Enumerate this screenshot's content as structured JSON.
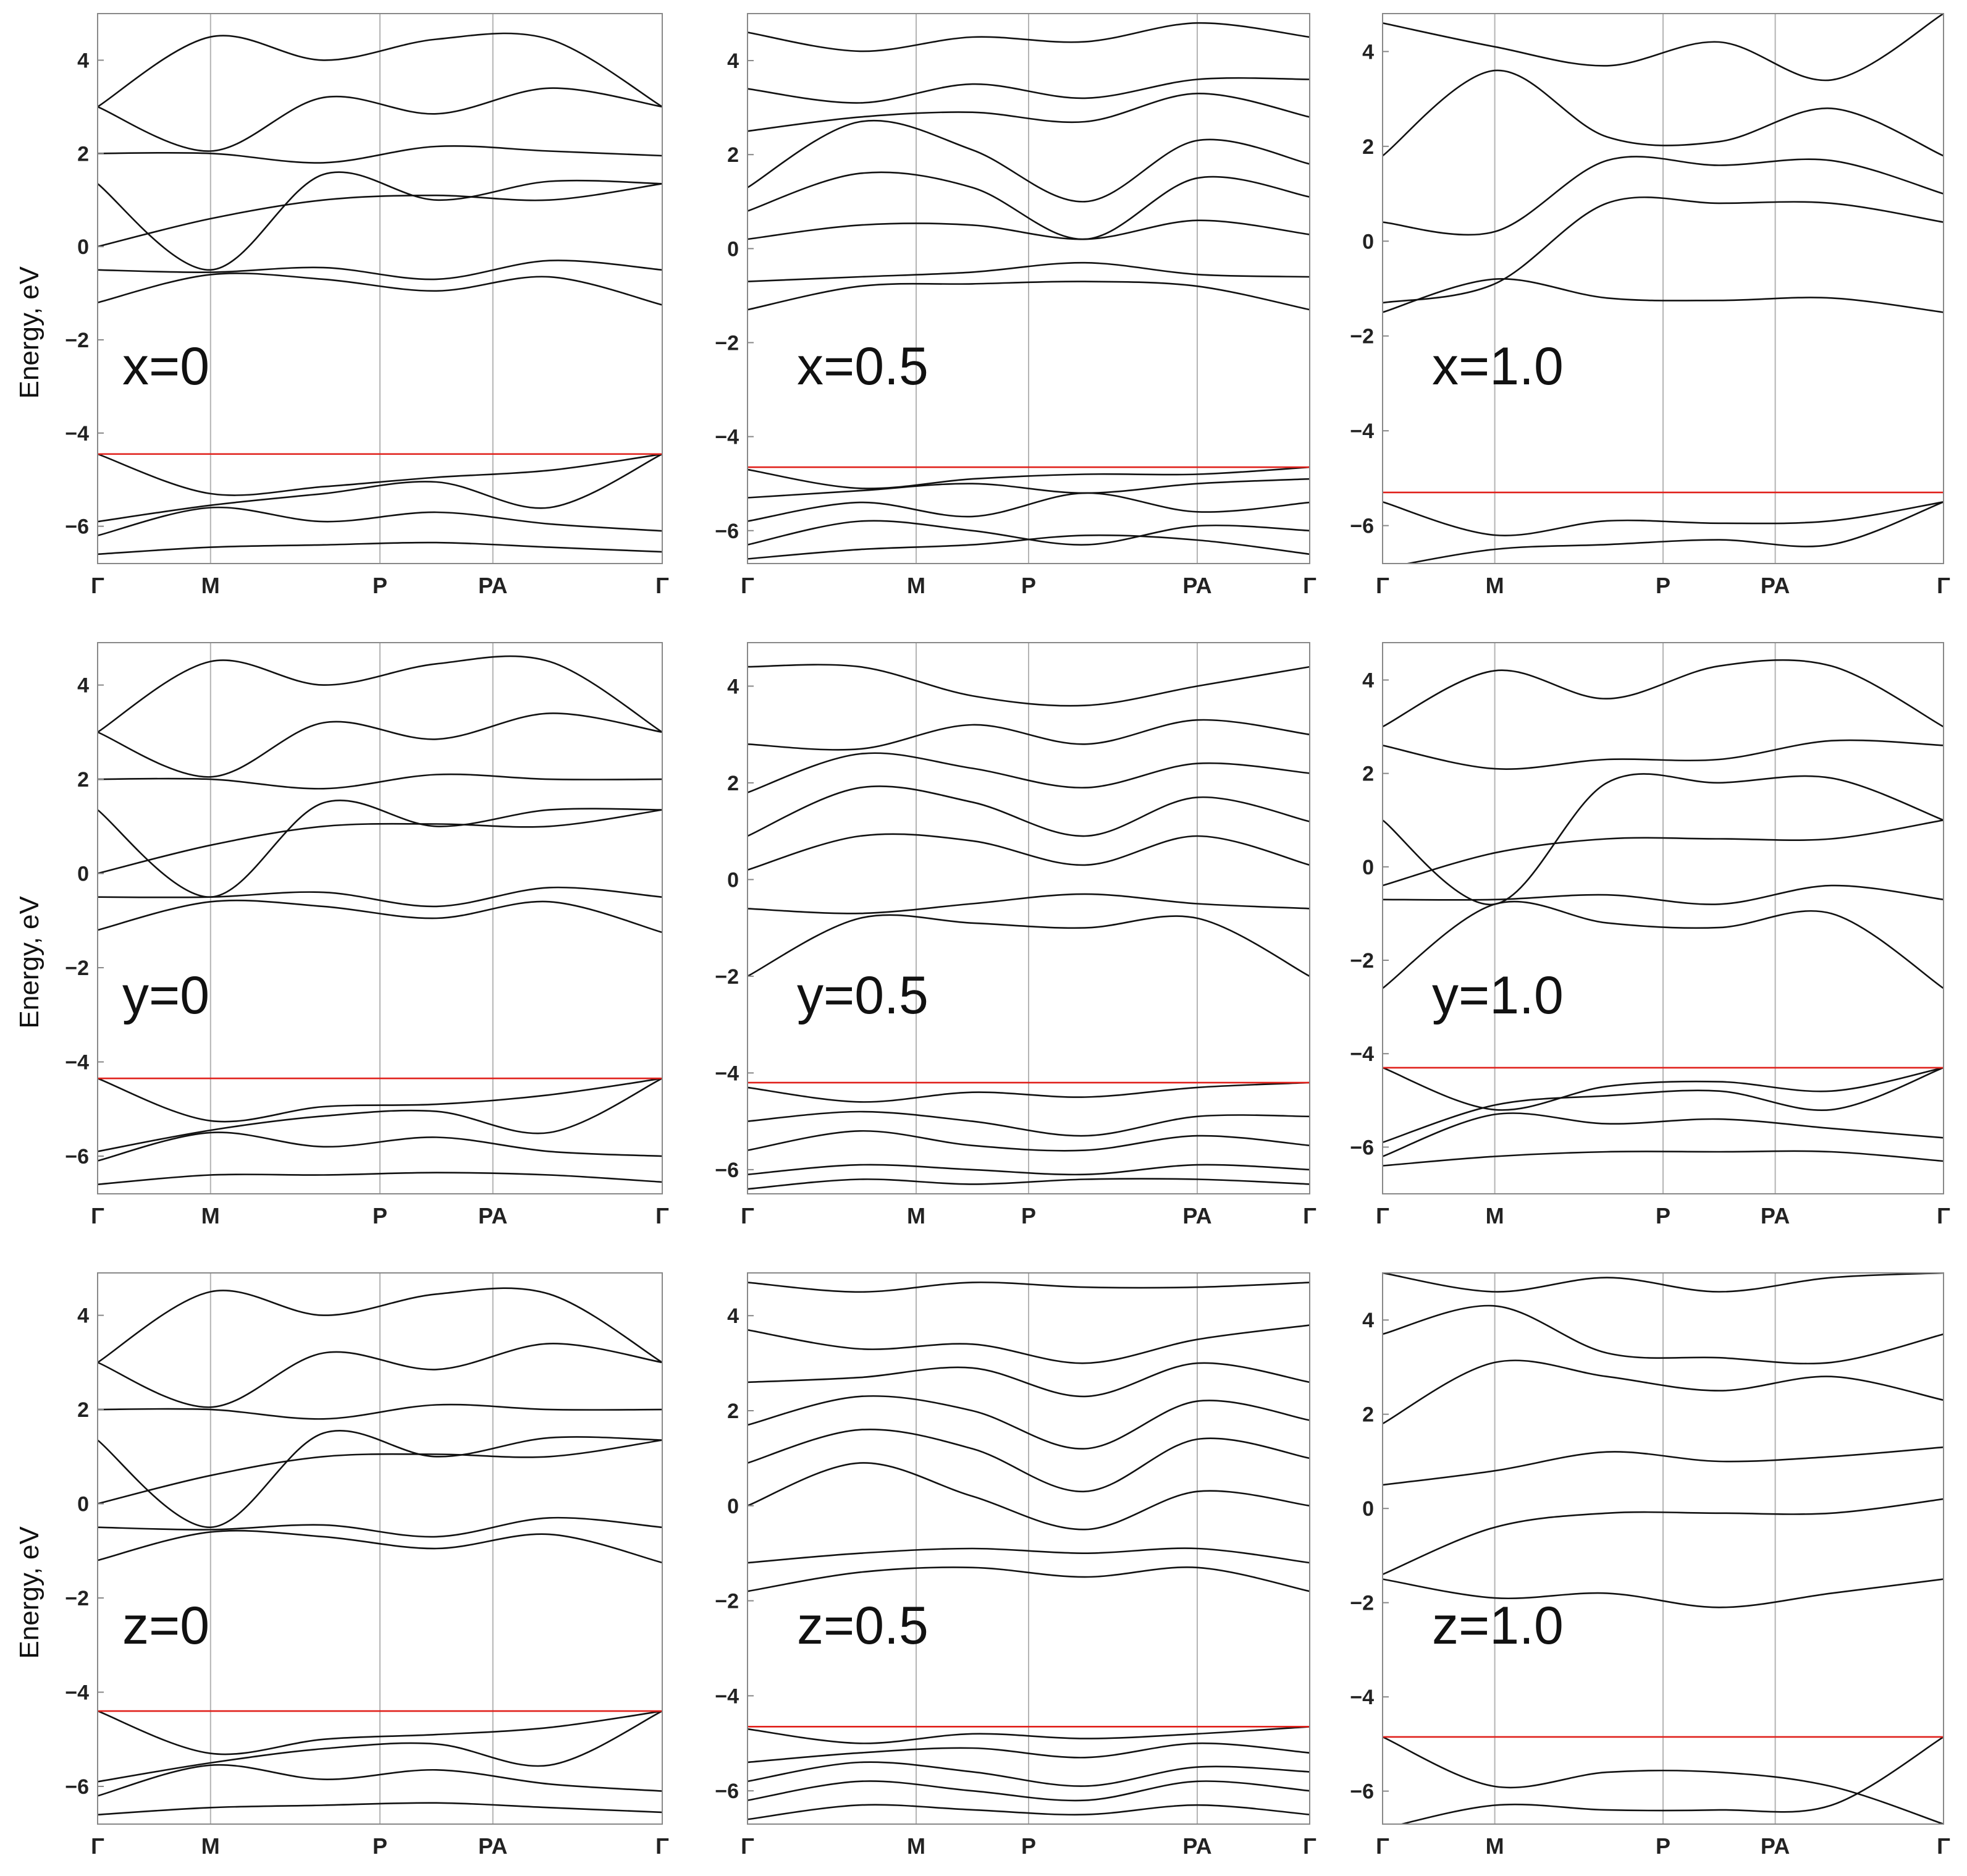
{
  "figure": {
    "ylabel": "Energy, eV",
    "xtick_labels": [
      "Γ",
      "M",
      "P",
      "PA",
      "Γ"
    ],
    "colors": {
      "band": "#111111",
      "fermi": "#e0201b",
      "grid": "#b4b4b4",
      "frame": "#888888"
    }
  },
  "chart_data": [
    {
      "type": "line",
      "label": "x=0",
      "ylim": [
        -6.8,
        5.0
      ],
      "yticks": [
        -6,
        -4,
        -2,
        0,
        2,
        4
      ],
      "kpoints": [
        0,
        1,
        2.5,
        3.5,
        5
      ],
      "fermi_level": -4.45,
      "series": [
        {
          "values": [
            -6.6,
            -6.45,
            -6.4,
            -6.35,
            -6.45,
            -6.55
          ]
        },
        {
          "values": [
            -6.2,
            -5.6,
            -5.9,
            -5.7,
            -5.95,
            -6.1
          ]
        },
        {
          "values": [
            -5.9,
            -5.55,
            -5.3,
            -5.05,
            -5.6,
            -4.45
          ]
        },
        {
          "values": [
            -4.45,
            -5.3,
            -5.15,
            -4.95,
            -4.8,
            -4.45
          ]
        },
        {
          "values": [
            -1.2,
            -0.6,
            -0.7,
            -0.95,
            -0.65,
            -1.25
          ]
        },
        {
          "values": [
            -0.5,
            -0.55,
            -0.45,
            -0.7,
            -0.3,
            -0.5
          ]
        },
        {
          "values": [
            0.0,
            0.6,
            1.0,
            1.1,
            1.0,
            1.35
          ]
        },
        {
          "values": [
            1.35,
            -0.5,
            1.55,
            1.0,
            1.4,
            1.35
          ]
        },
        {
          "values": [
            2.0,
            2.0,
            1.8,
            2.15,
            2.05,
            1.95
          ]
        },
        {
          "values": [
            3.0,
            2.05,
            3.2,
            2.85,
            3.4,
            3.0
          ]
        },
        {
          "values": [
            3.0,
            4.5,
            4.0,
            4.45,
            4.45,
            3.0
          ]
        }
      ]
    },
    {
      "type": "line",
      "label": "x=0.5",
      "ylim": [
        -6.7,
        5.0
      ],
      "yticks": [
        -6,
        -4,
        -2,
        0,
        2,
        4
      ],
      "kpoints": [
        0,
        1.5,
        2.5,
        4,
        5
      ],
      "fermi_level": -4.65,
      "series": [
        {
          "values": [
            -6.6,
            -6.4,
            -6.3,
            -6.1,
            -6.2,
            -6.5
          ]
        },
        {
          "values": [
            -6.3,
            -5.8,
            -6.0,
            -6.3,
            -5.9,
            -6.0
          ]
        },
        {
          "values": [
            -5.8,
            -5.4,
            -5.7,
            -5.2,
            -5.6,
            -5.4
          ]
        },
        {
          "values": [
            -5.3,
            -5.15,
            -5.0,
            -5.2,
            -5.0,
            -4.9
          ]
        },
        {
          "values": [
            -4.7,
            -5.1,
            -4.9,
            -4.8,
            -4.8,
            -4.65
          ]
        },
        {
          "values": [
            -1.3,
            -0.8,
            -0.75,
            -0.7,
            -0.8,
            -1.3
          ]
        },
        {
          "values": [
            -0.7,
            -0.6,
            -0.5,
            -0.3,
            -0.55,
            -0.6
          ]
        },
        {
          "values": [
            0.2,
            0.5,
            0.5,
            0.2,
            0.6,
            0.3
          ]
        },
        {
          "values": [
            0.8,
            1.6,
            1.3,
            0.2,
            1.5,
            1.1
          ]
        },
        {
          "values": [
            1.3,
            2.7,
            2.1,
            1.0,
            2.3,
            1.8
          ]
        },
        {
          "values": [
            2.5,
            2.8,
            2.9,
            2.7,
            3.3,
            2.8
          ]
        },
        {
          "values": [
            3.4,
            3.1,
            3.5,
            3.2,
            3.6,
            3.6
          ]
        },
        {
          "values": [
            4.6,
            4.2,
            4.5,
            4.4,
            4.8,
            4.5
          ]
        }
      ]
    },
    {
      "type": "line",
      "label": "x=1.0",
      "ylim": [
        -6.8,
        4.8
      ],
      "yticks": [
        -6,
        -4,
        -2,
        0,
        2,
        4
      ],
      "kpoints": [
        0,
        1,
        2.5,
        3.5,
        5
      ],
      "fermi_level": -5.3,
      "series": [
        {
          "values": [
            -6.9,
            -6.5,
            -6.4,
            -6.3,
            -6.4,
            -5.5
          ]
        },
        {
          "values": [
            -5.5,
            -6.2,
            -5.9,
            -5.95,
            -5.9,
            -5.5
          ]
        },
        {
          "values": [
            -1.5,
            -0.8,
            -1.2,
            -1.25,
            -1.2,
            -1.5
          ]
        },
        {
          "values": [
            -1.3,
            -0.9,
            0.8,
            0.8,
            0.8,
            0.4
          ]
        },
        {
          "values": [
            0.4,
            0.2,
            1.7,
            1.6,
            1.7,
            1.0
          ]
        },
        {
          "values": [
            1.8,
            3.6,
            2.2,
            2.1,
            2.8,
            1.8
          ]
        },
        {
          "values": [
            4.6,
            4.1,
            3.7,
            4.2,
            3.4,
            4.8
          ]
        }
      ]
    },
    {
      "type": "line",
      "label": "y=0",
      "ylim": [
        -6.8,
        4.9
      ],
      "yticks": [
        -6,
        -4,
        -2,
        0,
        2,
        4
      ],
      "kpoints": [
        0,
        1,
        2.5,
        3.5,
        5
      ],
      "fermi_level": -4.35,
      "series": [
        {
          "values": [
            -6.6,
            -6.4,
            -6.4,
            -6.35,
            -6.4,
            -6.55
          ]
        },
        {
          "values": [
            -6.1,
            -5.5,
            -5.8,
            -5.6,
            -5.9,
            -6.0
          ]
        },
        {
          "values": [
            -5.9,
            -5.45,
            -5.15,
            -5.05,
            -5.5,
            -4.35
          ]
        },
        {
          "values": [
            -4.35,
            -5.25,
            -4.95,
            -4.9,
            -4.7,
            -4.35
          ]
        },
        {
          "values": [
            -1.2,
            -0.6,
            -0.7,
            -0.95,
            -0.6,
            -1.25
          ]
        },
        {
          "values": [
            -0.5,
            -0.5,
            -0.4,
            -0.7,
            -0.3,
            -0.5
          ]
        },
        {
          "values": [
            0.0,
            0.6,
            1.0,
            1.05,
            1.0,
            1.35
          ]
        },
        {
          "values": [
            1.35,
            -0.5,
            1.5,
            1.0,
            1.35,
            1.35
          ]
        },
        {
          "values": [
            2.0,
            2.0,
            1.8,
            2.1,
            2.0,
            2.0
          ]
        },
        {
          "values": [
            3.0,
            2.05,
            3.2,
            2.85,
            3.4,
            3.0
          ]
        },
        {
          "values": [
            3.0,
            4.5,
            4.0,
            4.45,
            4.5,
            3.0
          ]
        }
      ]
    },
    {
      "type": "line",
      "label": "y=0.5",
      "ylim": [
        -6.5,
        4.9
      ],
      "yticks": [
        -6,
        -4,
        -2,
        0,
        2,
        4
      ],
      "kpoints": [
        0,
        1.5,
        2.5,
        4,
        5
      ],
      "fermi_level": -4.2,
      "series": [
        {
          "values": [
            -6.4,
            -6.2,
            -6.3,
            -6.2,
            -6.2,
            -6.3
          ]
        },
        {
          "values": [
            -6.1,
            -5.9,
            -6.0,
            -6.1,
            -5.9,
            -6.0
          ]
        },
        {
          "values": [
            -5.6,
            -5.2,
            -5.5,
            -5.6,
            -5.3,
            -5.5
          ]
        },
        {
          "values": [
            -5.0,
            -4.8,
            -5.0,
            -5.3,
            -4.9,
            -4.9
          ]
        },
        {
          "values": [
            -4.3,
            -4.6,
            -4.4,
            -4.5,
            -4.3,
            -4.2
          ]
        },
        {
          "values": [
            -2.0,
            -0.8,
            -0.9,
            -1.0,
            -0.8,
            -2.0
          ]
        },
        {
          "values": [
            -0.6,
            -0.7,
            -0.5,
            -0.3,
            -0.5,
            -0.6
          ]
        },
        {
          "values": [
            0.2,
            0.9,
            0.8,
            0.3,
            0.9,
            0.3
          ]
        },
        {
          "values": [
            0.9,
            1.9,
            1.6,
            0.9,
            1.7,
            1.2
          ]
        },
        {
          "values": [
            1.8,
            2.6,
            2.3,
            1.9,
            2.4,
            2.2
          ]
        },
        {
          "values": [
            2.8,
            2.7,
            3.2,
            2.8,
            3.3,
            3.0
          ]
        },
        {
          "values": [
            4.4,
            4.4,
            3.8,
            3.6,
            4.0,
            4.4
          ]
        }
      ]
    },
    {
      "type": "line",
      "label": "y=1.0",
      "ylim": [
        -7.0,
        4.8
      ],
      "yticks": [
        -6,
        -4,
        -2,
        0,
        2,
        4
      ],
      "kpoints": [
        0,
        1,
        2.5,
        3.5,
        5
      ],
      "fermi_level": -4.3,
      "series": [
        {
          "values": [
            -6.4,
            -6.2,
            -6.1,
            -6.1,
            -6.1,
            -6.3
          ]
        },
        {
          "values": [
            -6.2,
            -5.3,
            -5.5,
            -5.4,
            -5.6,
            -5.8
          ]
        },
        {
          "values": [
            -5.9,
            -5.1,
            -4.9,
            -4.8,
            -5.2,
            -4.3
          ]
        },
        {
          "values": [
            -4.3,
            -5.2,
            -4.7,
            -4.6,
            -4.8,
            -4.3
          ]
        },
        {
          "values": [
            -2.6,
            -0.8,
            -1.2,
            -1.3,
            -1.0,
            -2.6
          ]
        },
        {
          "values": [
            -0.7,
            -0.7,
            -0.6,
            -0.8,
            -0.4,
            -0.7
          ]
        },
        {
          "values": [
            -0.4,
            0.3,
            0.6,
            0.6,
            0.6,
            1.0
          ]
        },
        {
          "values": [
            1.0,
            -0.8,
            1.8,
            1.8,
            1.9,
            1.0
          ]
        },
        {
          "values": [
            2.6,
            2.1,
            2.3,
            2.3,
            2.7,
            2.6
          ]
        },
        {
          "values": [
            3.0,
            4.2,
            3.6,
            4.3,
            4.3,
            3.0
          ]
        }
      ]
    },
    {
      "type": "line",
      "label": "z=0",
      "ylim": [
        -6.8,
        4.9
      ],
      "yticks": [
        -6,
        -4,
        -2,
        0,
        2,
        4
      ],
      "kpoints": [
        0,
        1,
        2.5,
        3.5,
        5
      ],
      "fermi_level": -4.4,
      "series": [
        {
          "values": [
            -6.6,
            -6.45,
            -6.4,
            -6.35,
            -6.45,
            -6.55
          ]
        },
        {
          "values": [
            -6.2,
            -5.55,
            -5.85,
            -5.65,
            -5.95,
            -6.1
          ]
        },
        {
          "values": [
            -5.9,
            -5.5,
            -5.2,
            -5.1,
            -5.55,
            -4.4
          ]
        },
        {
          "values": [
            -4.4,
            -5.3,
            -5.0,
            -4.9,
            -4.75,
            -4.4
          ]
        },
        {
          "values": [
            -1.2,
            -0.6,
            -0.7,
            -0.95,
            -0.65,
            -1.25
          ]
        },
        {
          "values": [
            -0.5,
            -0.55,
            -0.45,
            -0.7,
            -0.3,
            -0.5
          ]
        },
        {
          "values": [
            0.0,
            0.6,
            1.0,
            1.05,
            1.0,
            1.35
          ]
        },
        {
          "values": [
            1.35,
            -0.5,
            1.5,
            1.0,
            1.4,
            1.35
          ]
        },
        {
          "values": [
            2.0,
            2.0,
            1.8,
            2.1,
            2.0,
            2.0
          ]
        },
        {
          "values": [
            3.0,
            2.05,
            3.2,
            2.85,
            3.4,
            3.0
          ]
        },
        {
          "values": [
            3.0,
            4.5,
            4.0,
            4.45,
            4.45,
            3.0
          ]
        }
      ]
    },
    {
      "type": "line",
      "label": "z=0.5",
      "ylim": [
        -6.7,
        4.9
      ],
      "yticks": [
        -6,
        -4,
        -2,
        0,
        2,
        4
      ],
      "kpoints": [
        0,
        1.5,
        2.5,
        4,
        5
      ],
      "fermi_level": -4.65,
      "series": [
        {
          "values": [
            -6.6,
            -6.3,
            -6.4,
            -6.5,
            -6.3,
            -6.5
          ]
        },
        {
          "values": [
            -6.2,
            -5.8,
            -6.0,
            -6.2,
            -5.8,
            -6.0
          ]
        },
        {
          "values": [
            -5.8,
            -5.4,
            -5.6,
            -5.9,
            -5.5,
            -5.6
          ]
        },
        {
          "values": [
            -5.4,
            -5.2,
            -5.1,
            -5.3,
            -5.0,
            -5.2
          ]
        },
        {
          "values": [
            -4.7,
            -5.0,
            -4.8,
            -4.9,
            -4.8,
            -4.65
          ]
        },
        {
          "values": [
            -1.8,
            -1.4,
            -1.3,
            -1.5,
            -1.3,
            -1.8
          ]
        },
        {
          "values": [
            -1.2,
            -1.0,
            -0.9,
            -1.0,
            -0.9,
            -1.2
          ]
        },
        {
          "values": [
            0.0,
            0.9,
            0.2,
            -0.5,
            0.3,
            0.0
          ]
        },
        {
          "values": [
            0.9,
            1.6,
            1.2,
            0.3,
            1.4,
            1.0
          ]
        },
        {
          "values": [
            1.7,
            2.3,
            2.0,
            1.2,
            2.2,
            1.8
          ]
        },
        {
          "values": [
            2.6,
            2.7,
            2.9,
            2.3,
            3.0,
            2.6
          ]
        },
        {
          "values": [
            3.7,
            3.3,
            3.4,
            3.0,
            3.5,
            3.8
          ]
        },
        {
          "values": [
            4.7,
            4.5,
            4.7,
            4.6,
            4.6,
            4.7
          ]
        }
      ]
    },
    {
      "type": "line",
      "label": "z=1.0",
      "ylim": [
        -6.7,
        5.0
      ],
      "yticks": [
        -6,
        -4,
        -2,
        0,
        2,
        4
      ],
      "kpoints": [
        0,
        1,
        2.5,
        3.5,
        5
      ],
      "fermi_level": -4.85,
      "series": [
        {
          "values": [
            -6.8,
            -6.3,
            -6.4,
            -6.4,
            -6.3,
            -4.85
          ]
        },
        {
          "values": [
            -4.85,
            -5.9,
            -5.6,
            -5.6,
            -5.9,
            -6.7
          ]
        },
        {
          "values": [
            -1.5,
            -1.9,
            -1.8,
            -2.1,
            -1.8,
            -1.5
          ]
        },
        {
          "values": [
            -1.4,
            -0.4,
            -0.1,
            -0.1,
            -0.1,
            0.2
          ]
        },
        {
          "values": [
            0.5,
            0.8,
            1.2,
            1.0,
            1.1,
            1.3
          ]
        },
        {
          "values": [
            1.8,
            3.1,
            2.8,
            2.5,
            2.8,
            2.3
          ]
        },
        {
          "values": [
            3.7,
            4.3,
            3.3,
            3.2,
            3.1,
            3.7
          ]
        },
        {
          "values": [
            5.0,
            4.6,
            4.9,
            4.6,
            4.9,
            5.0
          ]
        }
      ]
    }
  ]
}
